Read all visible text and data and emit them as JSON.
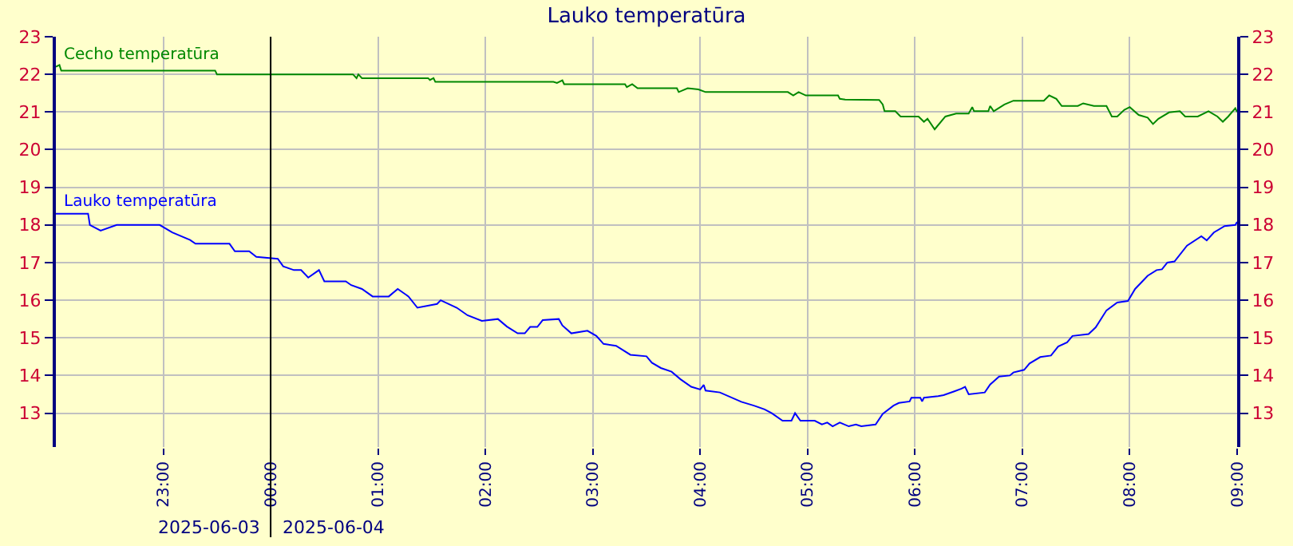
{
  "chart_data": {
    "type": "line",
    "title": "Lauko temperatūra",
    "xlim": [
      "2025-06-03T22:00",
      "2025-06-04T09:00"
    ],
    "xticks": [
      {
        "value": "2025-06-03T23:00",
        "label": "23:00"
      },
      {
        "value": "2025-06-04T00:00",
        "label": "00:00"
      },
      {
        "value": "2025-06-04T01:00",
        "label": "01:00"
      },
      {
        "value": "2025-06-04T02:00",
        "label": "02:00"
      },
      {
        "value": "2025-06-04T03:00",
        "label": "03:00"
      },
      {
        "value": "2025-06-04T04:00",
        "label": "04:00"
      },
      {
        "value": "2025-06-04T05:00",
        "label": "05:00"
      },
      {
        "value": "2025-06-04T06:00",
        "label": "06:00"
      },
      {
        "value": "2025-06-04T07:00",
        "label": "07:00"
      },
      {
        "value": "2025-06-04T08:00",
        "label": "08:00"
      },
      {
        "value": "2025-06-04T09:00",
        "label": "09:00"
      }
    ],
    "ylim": [
      12.1,
      23
    ],
    "yticks": [
      13,
      14,
      15,
      16,
      17,
      18,
      19,
      20,
      21,
      22,
      23
    ],
    "y2lim": [
      12.1,
      23
    ],
    "y2ticks": [
      13,
      14,
      15,
      16,
      17,
      18,
      19,
      20,
      21,
      22,
      23
    ],
    "grid": true,
    "legend": false,
    "marker": "none",
    "line_style": "solid",
    "ref_lines": [
      {
        "axis": "x",
        "value": "2025-06-04T00:00",
        "color": "#000000"
      }
    ],
    "annotations": [
      "2025-06-03",
      "2025-06-04"
    ],
    "series": [
      {
        "name": "Cecho temperatūra",
        "color": "#008800",
        "x": [
          "2025-06-03T22:00",
          "2025-06-03T22:02",
          "2025-06-03T22:03",
          "2025-06-03T23:29",
          "2025-06-03T23:30",
          "2025-06-04T00:46",
          "2025-06-04T00:48",
          "2025-06-04T00:49",
          "2025-06-04T00:51",
          "2025-06-04T01:28",
          "2025-06-04T01:29",
          "2025-06-04T01:31",
          "2025-06-04T01:32",
          "2025-06-04T02:38",
          "2025-06-04T02:40",
          "2025-06-04T02:43",
          "2025-06-04T02:44",
          "2025-06-04T03:18",
          "2025-06-04T03:19",
          "2025-06-04T03:22",
          "2025-06-04T03:25",
          "2025-06-04T03:47",
          "2025-06-04T03:48",
          "2025-06-04T03:53",
          "2025-06-04T03:59",
          "2025-06-04T04:03",
          "2025-06-04T04:49",
          "2025-06-04T04:52",
          "2025-06-04T04:55",
          "2025-06-04T04:59",
          "2025-06-04T05:17",
          "2025-06-04T05:18",
          "2025-06-04T05:21",
          "2025-06-04T05:40",
          "2025-06-04T05:42",
          "2025-06-04T05:43",
          "2025-06-04T05:49",
          "2025-06-04T05:52",
          "2025-06-04T06:02",
          "2025-06-04T06:05",
          "2025-06-04T06:07",
          "2025-06-04T06:11",
          "2025-06-04T06:17",
          "2025-06-04T06:23",
          "2025-06-04T06:30",
          "2025-06-04T06:32",
          "2025-06-04T06:33",
          "2025-06-04T06:41",
          "2025-06-04T06:42",
          "2025-06-04T06:44",
          "2025-06-04T06:50",
          "2025-06-04T06:55",
          "2025-06-04T07:12",
          "2025-06-04T07:15",
          "2025-06-04T07:19",
          "2025-06-04T07:22",
          "2025-06-04T07:31",
          "2025-06-04T07:34",
          "2025-06-04T07:40",
          "2025-06-04T07:47",
          "2025-06-04T07:50",
          "2025-06-04T07:53",
          "2025-06-04T07:57",
          "2025-06-04T08:00",
          "2025-06-04T08:05",
          "2025-06-04T08:10",
          "2025-06-04T08:13",
          "2025-06-04T08:16",
          "2025-06-04T08:22",
          "2025-06-04T08:28",
          "2025-06-04T08:31",
          "2025-06-04T08:38",
          "2025-06-04T08:44",
          "2025-06-04T08:49",
          "2025-06-04T08:52",
          "2025-06-04T08:55",
          "2025-06-04T08:59",
          "2025-06-04T09:00"
        ],
        "values": [
          22.2,
          22.25,
          22.1,
          22.1,
          22.0,
          22.0,
          21.9,
          22.0,
          21.9,
          21.9,
          21.85,
          21.9,
          21.8,
          21.8,
          21.77,
          21.84,
          21.74,
          21.74,
          21.66,
          21.74,
          21.63,
          21.63,
          21.53,
          21.63,
          21.6,
          21.53,
          21.53,
          21.44,
          21.53,
          21.44,
          21.44,
          21.35,
          21.33,
          21.32,
          21.2,
          21.02,
          21.02,
          20.88,
          20.88,
          20.74,
          20.82,
          20.54,
          20.88,
          20.96,
          20.96,
          21.13,
          21.02,
          21.02,
          21.16,
          21.02,
          21.2,
          21.3,
          21.3,
          21.44,
          21.35,
          21.16,
          21.16,
          21.23,
          21.16,
          21.16,
          20.88,
          20.88,
          21.06,
          21.13,
          20.92,
          20.85,
          20.68,
          20.82,
          20.99,
          21.02,
          20.88,
          20.88,
          21.02,
          20.88,
          20.74,
          20.88,
          21.1,
          21.0
        ]
      },
      {
        "name": "Lauko temperatūra",
        "color": "#0000ff",
        "x": [
          "2025-06-03T22:00",
          "2025-06-03T22:18",
          "2025-06-03T22:19",
          "2025-06-03T22:25",
          "2025-06-03T22:34",
          "2025-06-03T22:58",
          "2025-06-03T23:05",
          "2025-06-03T23:15",
          "2025-06-03T23:18",
          "2025-06-03T23:37",
          "2025-06-03T23:40",
          "2025-06-03T23:48",
          "2025-06-03T23:52",
          "2025-06-04T00:04",
          "2025-06-04T00:07",
          "2025-06-04T00:13",
          "2025-06-04T00:17",
          "2025-06-04T00:21",
          "2025-06-04T00:27",
          "2025-06-04T00:30",
          "2025-06-04T00:42",
          "2025-06-04T00:45",
          "2025-06-04T00:51",
          "2025-06-04T00:57",
          "2025-06-04T01:06",
          "2025-06-04T01:11",
          "2025-06-04T01:17",
          "2025-06-04T01:22",
          "2025-06-04T01:33",
          "2025-06-04T01:35",
          "2025-06-04T01:44",
          "2025-06-04T01:50",
          "2025-06-04T01:58",
          "2025-06-04T02:07",
          "2025-06-04T02:12",
          "2025-06-04T02:18",
          "2025-06-04T02:22",
          "2025-06-04T02:25",
          "2025-06-04T02:29",
          "2025-06-04T02:32",
          "2025-06-04T02:41",
          "2025-06-04T02:43",
          "2025-06-04T02:48",
          "2025-06-04T02:57",
          "2025-06-04T03:02",
          "2025-06-04T03:06",
          "2025-06-04T03:13",
          "2025-06-04T03:21",
          "2025-06-04T03:30",
          "2025-06-04T03:33",
          "2025-06-04T03:38",
          "2025-06-04T03:44",
          "2025-06-04T03:49",
          "2025-06-04T03:55",
          "2025-06-04T04:00",
          "2025-06-04T04:02",
          "2025-06-04T04:03",
          "2025-06-04T04:11",
          "2025-06-04T04:23",
          "2025-06-04T04:30",
          "2025-06-04T04:36",
          "2025-06-04T04:40",
          "2025-06-04T04:46",
          "2025-06-04T04:51",
          "2025-06-04T04:53",
          "2025-06-04T04:56",
          "2025-06-04T05:04",
          "2025-06-04T05:08",
          "2025-06-04T05:11",
          "2025-06-04T05:14",
          "2025-06-04T05:18",
          "2025-06-04T05:23",
          "2025-06-04T05:27",
          "2025-06-04T05:30",
          "2025-06-04T05:38",
          "2025-06-04T05:42",
          "2025-06-04T05:48",
          "2025-06-04T05:51",
          "2025-06-04T05:57",
          "2025-06-04T05:58",
          "2025-06-04T06:03",
          "2025-06-04T06:04",
          "2025-06-04T06:05",
          "2025-06-04T06:13",
          "2025-06-04T06:16",
          "2025-06-04T06:22",
          "2025-06-04T06:26",
          "2025-06-04T06:28",
          "2025-06-04T06:30",
          "2025-06-04T06:39",
          "2025-06-04T06:42",
          "2025-06-04T06:47",
          "2025-06-04T06:53",
          "2025-06-04T06:55",
          "2025-06-04T07:01",
          "2025-06-04T07:04",
          "2025-06-04T07:10",
          "2025-06-04T07:16",
          "2025-06-04T07:20",
          "2025-06-04T07:25",
          "2025-06-04T07:28",
          "2025-06-04T07:37",
          "2025-06-04T07:41",
          "2025-06-04T07:47",
          "2025-06-04T07:53",
          "2025-06-04T07:59",
          "2025-06-04T08:03",
          "2025-06-04T08:10",
          "2025-06-04T08:15",
          "2025-06-04T08:18",
          "2025-06-04T08:21",
          "2025-06-04T08:25",
          "2025-06-04T08:32",
          "2025-06-04T08:40",
          "2025-06-04T08:43",
          "2025-06-04T08:47",
          "2025-06-04T08:53",
          "2025-06-04T08:59",
          "2025-06-04T09:00"
        ],
        "values": [
          18.3,
          18.3,
          18.0,
          17.85,
          18.0,
          18.0,
          17.8,
          17.6,
          17.5,
          17.5,
          17.3,
          17.3,
          17.15,
          17.1,
          16.9,
          16.8,
          16.8,
          16.6,
          16.8,
          16.5,
          16.5,
          16.4,
          16.3,
          16.1,
          16.1,
          16.3,
          16.1,
          15.8,
          15.9,
          16.0,
          15.8,
          15.6,
          15.45,
          15.5,
          15.3,
          15.12,
          15.12,
          15.29,
          15.29,
          15.47,
          15.5,
          15.33,
          15.12,
          15.19,
          15.05,
          14.84,
          14.79,
          14.55,
          14.51,
          14.34,
          14.2,
          14.1,
          13.9,
          13.7,
          13.63,
          13.75,
          13.6,
          13.55,
          13.3,
          13.2,
          13.1,
          13.0,
          12.8,
          12.8,
          13.0,
          12.8,
          12.8,
          12.7,
          12.75,
          12.65,
          12.75,
          12.65,
          12.7,
          12.65,
          12.7,
          12.98,
          13.2,
          13.27,
          13.31,
          13.41,
          13.41,
          13.31,
          13.41,
          13.45,
          13.48,
          13.58,
          13.65,
          13.7,
          13.5,
          13.55,
          13.76,
          13.97,
          14.0,
          14.08,
          14.15,
          14.32,
          14.49,
          14.53,
          14.77,
          14.88,
          15.05,
          15.1,
          15.28,
          15.73,
          15.94,
          15.98,
          16.3,
          16.65,
          16.8,
          16.82,
          17.0,
          17.03,
          17.45,
          17.7,
          17.59,
          17.8,
          17.97,
          18.0,
          18.08
        ]
      }
    ]
  }
}
